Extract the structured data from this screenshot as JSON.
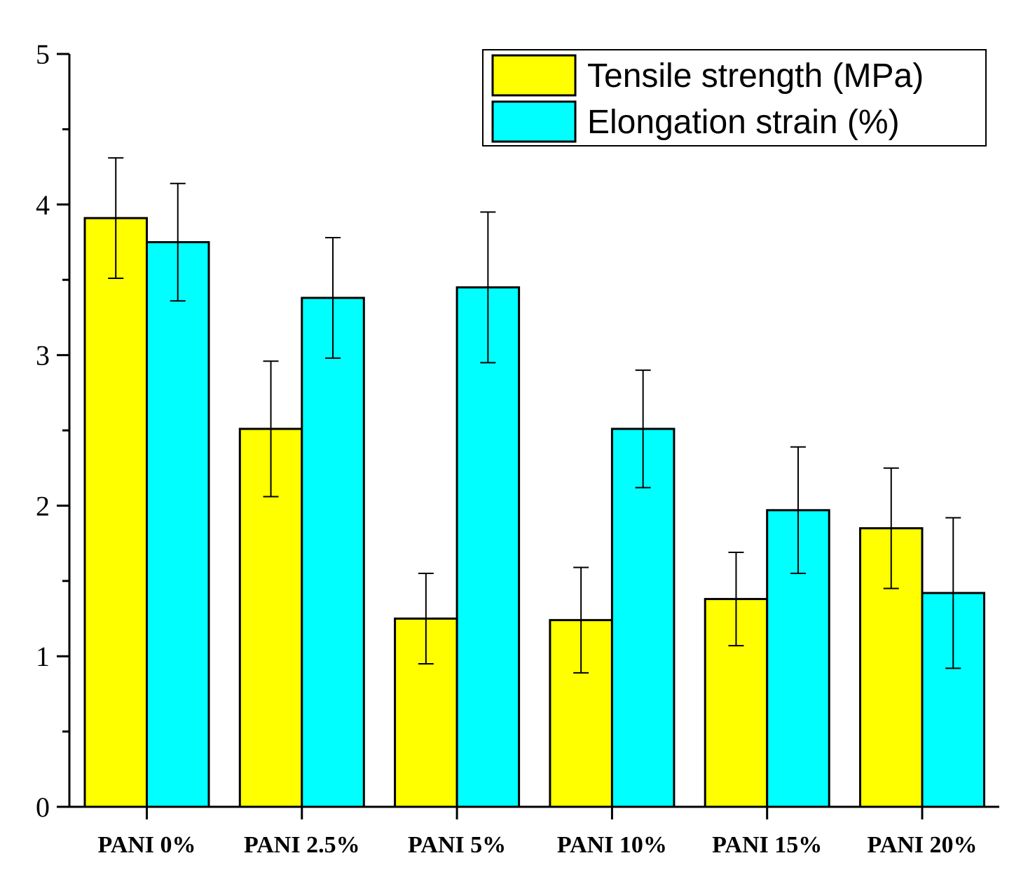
{
  "chart_data": {
    "type": "bar",
    "title": "",
    "xlabel": "",
    "ylabel": "",
    "ylim": [
      0,
      5
    ],
    "yticks": [
      0,
      1,
      2,
      3,
      4,
      5
    ],
    "categories": [
      "PANI 0%",
      "PANI 2.5%",
      "PANI 5%",
      "PANI 10%",
      "PANI 15%",
      "PANI 20%"
    ],
    "legend_position": "top-right",
    "series": [
      {
        "name": "Tensile strength (MPa)",
        "color": "#ffff00",
        "values": [
          3.91,
          2.51,
          1.25,
          1.24,
          1.38,
          1.85
        ],
        "errors": [
          0.4,
          0.45,
          0.3,
          0.35,
          0.31,
          0.4
        ]
      },
      {
        "name": "Elongation strain (%)",
        "color": "#00ffff",
        "values": [
          3.75,
          3.38,
          3.45,
          2.51,
          1.97,
          1.42
        ],
        "errors": [
          0.39,
          0.4,
          0.5,
          0.39,
          0.42,
          0.5
        ]
      }
    ]
  }
}
